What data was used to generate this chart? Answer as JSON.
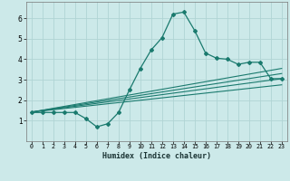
{
  "title": "",
  "xlabel": "Humidex (Indice chaleur)",
  "ylabel": "",
  "bg_color": "#cce9e9",
  "grid_color": "#b0d4d4",
  "line_color": "#1a7a6e",
  "xlim": [
    -0.5,
    23.5
  ],
  "ylim": [
    0.0,
    6.8
  ],
  "xticks": [
    0,
    1,
    2,
    3,
    4,
    5,
    6,
    7,
    8,
    9,
    10,
    11,
    12,
    13,
    14,
    15,
    16,
    17,
    18,
    19,
    20,
    21,
    22,
    23
  ],
  "yticks": [
    1,
    2,
    3,
    4,
    5,
    6
  ],
  "main_x": [
    0,
    1,
    2,
    3,
    4,
    5,
    6,
    7,
    8,
    9,
    10,
    11,
    12,
    13,
    14,
    15,
    16,
    17,
    18,
    19,
    20,
    21,
    22,
    23
  ],
  "main_y": [
    1.4,
    1.4,
    1.4,
    1.4,
    1.4,
    1.1,
    0.7,
    0.85,
    1.4,
    2.5,
    3.55,
    4.45,
    5.05,
    6.2,
    6.3,
    5.4,
    4.3,
    4.05,
    4.0,
    3.75,
    3.85,
    3.85,
    3.05,
    3.05
  ],
  "line1_x": [
    0,
    23
  ],
  "line1_y": [
    1.42,
    3.05
  ],
  "line2_x": [
    0,
    23
  ],
  "line2_y": [
    1.42,
    3.3
  ],
  "line3_x": [
    0,
    23
  ],
  "line3_y": [
    1.42,
    3.55
  ],
  "line4_x": [
    0,
    23
  ],
  "line4_y": [
    1.42,
    2.75
  ]
}
